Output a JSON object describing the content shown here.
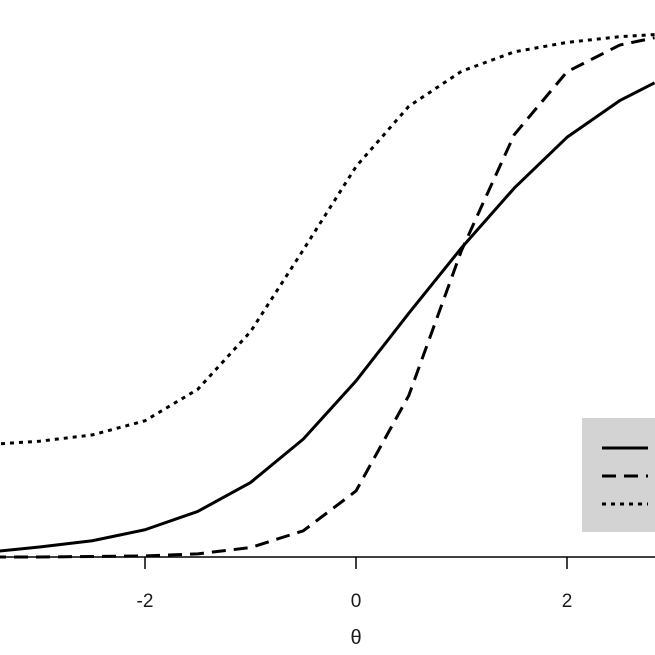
{
  "chart_data": {
    "type": "line",
    "xlabel": "θ",
    "ylabel": "",
    "title": "",
    "xlim": [
      -3.45,
      2.83
    ],
    "ylim": [
      0.0,
      1.0
    ],
    "x_ticks": [
      -2,
      0,
      2
    ],
    "x_tick_labels": [
      "-2",
      "0",
      "2"
    ],
    "grid": false,
    "legend": {
      "placement": "bottom-right",
      "background": "#d3d3d3",
      "entries": [
        "solid",
        "dashed",
        "dotted"
      ]
    },
    "series": [
      {
        "style": "solid",
        "color": "#000000",
        "x": [
          -3.45,
          -3.0,
          -2.5,
          -2.0,
          -1.5,
          -1.0,
          -0.5,
          0.0,
          0.5,
          1.0,
          1.5,
          2.0,
          2.5,
          2.83
        ],
        "y": [
          0.01,
          0.019,
          0.031,
          0.052,
          0.087,
          0.142,
          0.225,
          0.336,
          0.465,
          0.59,
          0.704,
          0.801,
          0.871,
          0.905
        ]
      },
      {
        "style": "dashed",
        "color": "#000000",
        "x": [
          -3.45,
          -3.0,
          -2.5,
          -2.0,
          -1.5,
          -1.0,
          -0.5,
          0.0,
          0.5,
          1.0,
          1.5,
          2.0,
          2.5,
          2.83
        ],
        "y": [
          0.0,
          0.0,
          0.001,
          0.002,
          0.006,
          0.018,
          0.05,
          0.126,
          0.308,
          0.585,
          0.806,
          0.926,
          0.977,
          0.991
        ]
      },
      {
        "style": "dotted",
        "color": "#000000",
        "x": [
          -3.45,
          -3.0,
          -2.5,
          -2.0,
          -1.5,
          -1.0,
          -0.5,
          0.0,
          0.5,
          1.0,
          1.5,
          2.0,
          2.5,
          2.83
        ],
        "y": [
          0.215,
          0.221,
          0.233,
          0.26,
          0.32,
          0.43,
          0.586,
          0.745,
          0.86,
          0.927,
          0.964,
          0.982,
          0.993,
          0.997
        ]
      }
    ]
  }
}
